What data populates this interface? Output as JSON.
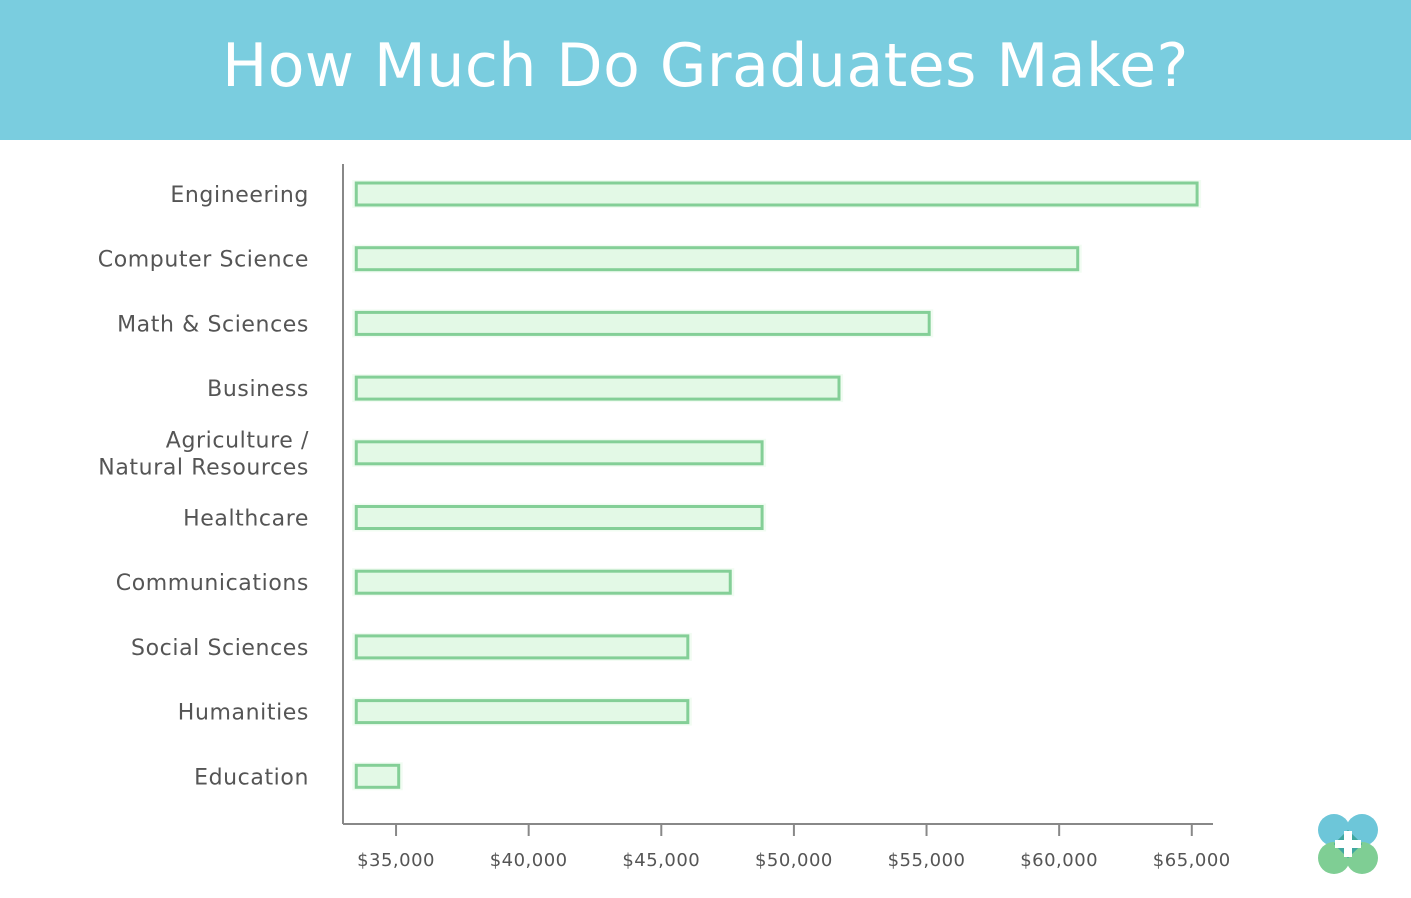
{
  "header": {
    "title": "How Much Do Graduates Make?"
  },
  "colors": {
    "header_bg": "#7acddf",
    "bar_fill": "#e3f9e6",
    "bar_stroke": "#84cf97",
    "axis": "#888888",
    "logo_teal": "#6dc6d9",
    "logo_green": "#7fce94"
  },
  "logo": {
    "icon": "medical-cross-icon"
  },
  "chart_data": {
    "type": "bar",
    "orientation": "horizontal",
    "title": "",
    "xlabel": "",
    "ylabel": "",
    "categories": [
      [
        "Engineering"
      ],
      [
        "Computer Science"
      ],
      [
        "Math & Sciences"
      ],
      [
        "Business"
      ],
      [
        "Agriculture /",
        "Natural Resources"
      ],
      [
        "Healthcare"
      ],
      [
        "Communications"
      ],
      [
        "Social Sciences"
      ],
      [
        "Humanities"
      ],
      [
        "Education"
      ]
    ],
    "values": [
      65200,
      60700,
      55100,
      51700,
      48800,
      48800,
      47600,
      46000,
      46000,
      35100
    ],
    "xlim": [
      33000,
      65800
    ],
    "bar_start": 33500,
    "ticks": [
      35000,
      40000,
      45000,
      50000,
      55000,
      60000,
      65000
    ],
    "tick_labels": [
      "$35,000",
      "$40,000",
      "$45,000",
      "$50,000",
      "$55,000",
      "$60,000",
      "$65,000"
    ],
    "grid": false,
    "legend": "none"
  }
}
